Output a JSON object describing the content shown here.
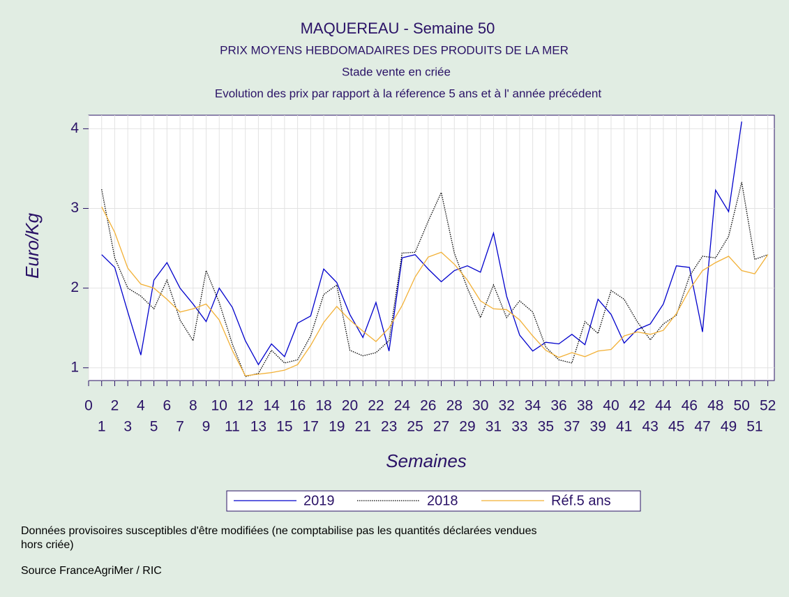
{
  "chart_data": {
    "type": "line",
    "title": "MAQUEREAU - Semaine 50",
    "subtitles": [
      "PRIX MOYENS HEBDOMADAIRES DES PRODUITS DE LA MER",
      "Stade vente en criée",
      "Evolution des prix par rapport à la réference 5 ans et à l' année précédent"
    ],
    "ylabel": "Euro/Kg",
    "xlabel": "Semaines",
    "x": [
      1,
      2,
      3,
      4,
      5,
      6,
      7,
      8,
      9,
      10,
      11,
      12,
      13,
      14,
      15,
      16,
      17,
      18,
      19,
      20,
      21,
      22,
      23,
      24,
      25,
      26,
      27,
      28,
      29,
      30,
      31,
      32,
      33,
      34,
      35,
      36,
      37,
      38,
      39,
      40,
      41,
      42,
      43,
      44,
      45,
      46,
      47,
      48,
      49,
      50,
      51,
      52
    ],
    "series": [
      {
        "name": "2019",
        "color": "#0000cc",
        "dash": "none",
        "values": [
          2.42,
          2.26,
          1.7,
          1.16,
          2.1,
          2.32,
          2.0,
          1.8,
          1.58,
          2.0,
          1.76,
          1.34,
          1.04,
          1.3,
          1.14,
          1.56,
          1.65,
          2.24,
          2.07,
          1.67,
          1.38,
          1.82,
          1.21,
          2.38,
          2.42,
          2.24,
          2.08,
          2.22,
          2.28,
          2.2,
          2.69,
          1.9,
          1.41,
          1.21,
          1.32,
          1.3,
          1.42,
          1.29,
          1.86,
          1.67,
          1.31,
          1.48,
          1.55,
          1.8,
          2.28,
          2.26,
          1.45,
          3.23,
          2.96,
          4.09,
          null,
          null
        ]
      },
      {
        "name": "2018",
        "color": "#000000",
        "dash": "1.5 1.5",
        "values": [
          3.24,
          2.38,
          2.0,
          1.9,
          1.74,
          2.1,
          1.6,
          1.34,
          2.22,
          1.82,
          1.3,
          0.89,
          0.93,
          1.22,
          1.06,
          1.1,
          1.4,
          1.92,
          2.04,
          1.22,
          1.15,
          1.19,
          1.34,
          2.44,
          2.45,
          2.84,
          3.2,
          2.44,
          2.0,
          1.63,
          2.04,
          1.63,
          1.84,
          1.7,
          1.26,
          1.1,
          1.06,
          1.58,
          1.43,
          1.97,
          1.86,
          1.58,
          1.35,
          1.55,
          1.66,
          2.15,
          2.4,
          2.38,
          2.65,
          3.33,
          2.36,
          2.42
        ]
      },
      {
        "name": "Réf.5 ans",
        "color": "#f2b035",
        "dash": "none",
        "values": [
          3.02,
          2.7,
          2.25,
          2.05,
          2.0,
          1.86,
          1.7,
          1.74,
          1.8,
          1.6,
          1.22,
          0.9,
          0.92,
          0.94,
          0.97,
          1.04,
          1.28,
          1.57,
          1.77,
          1.6,
          1.46,
          1.33,
          1.5,
          1.78,
          2.14,
          2.39,
          2.45,
          2.3,
          2.1,
          1.84,
          1.74,
          1.73,
          1.6,
          1.4,
          1.22,
          1.13,
          1.19,
          1.14,
          1.21,
          1.23,
          1.4,
          1.45,
          1.42,
          1.47,
          1.68,
          1.98,
          2.22,
          2.32,
          2.4,
          2.22,
          2.18,
          2.42
        ]
      }
    ],
    "xlim": [
      0,
      52.5
    ],
    "xticks": [
      0,
      1,
      2,
      3,
      4,
      5,
      6,
      7,
      8,
      9,
      10,
      11,
      12,
      13,
      14,
      15,
      16,
      17,
      18,
      19,
      20,
      21,
      22,
      23,
      24,
      25,
      26,
      27,
      28,
      29,
      30,
      31,
      32,
      33,
      34,
      35,
      36,
      37,
      38,
      39,
      40,
      41,
      42,
      43,
      44,
      45,
      46,
      47,
      48,
      49,
      50,
      51,
      52
    ],
    "ylim": [
      0.84,
      4.17
    ],
    "yticks": [
      1,
      2,
      3,
      4
    ],
    "grid": true,
    "notes": [
      "Données provisoires susceptibles d'être modifiées (ne comptabilise pas les quantités déclarées vendues",
      "hors criée)",
      "Source FranceAgriMer / RIC"
    ]
  }
}
